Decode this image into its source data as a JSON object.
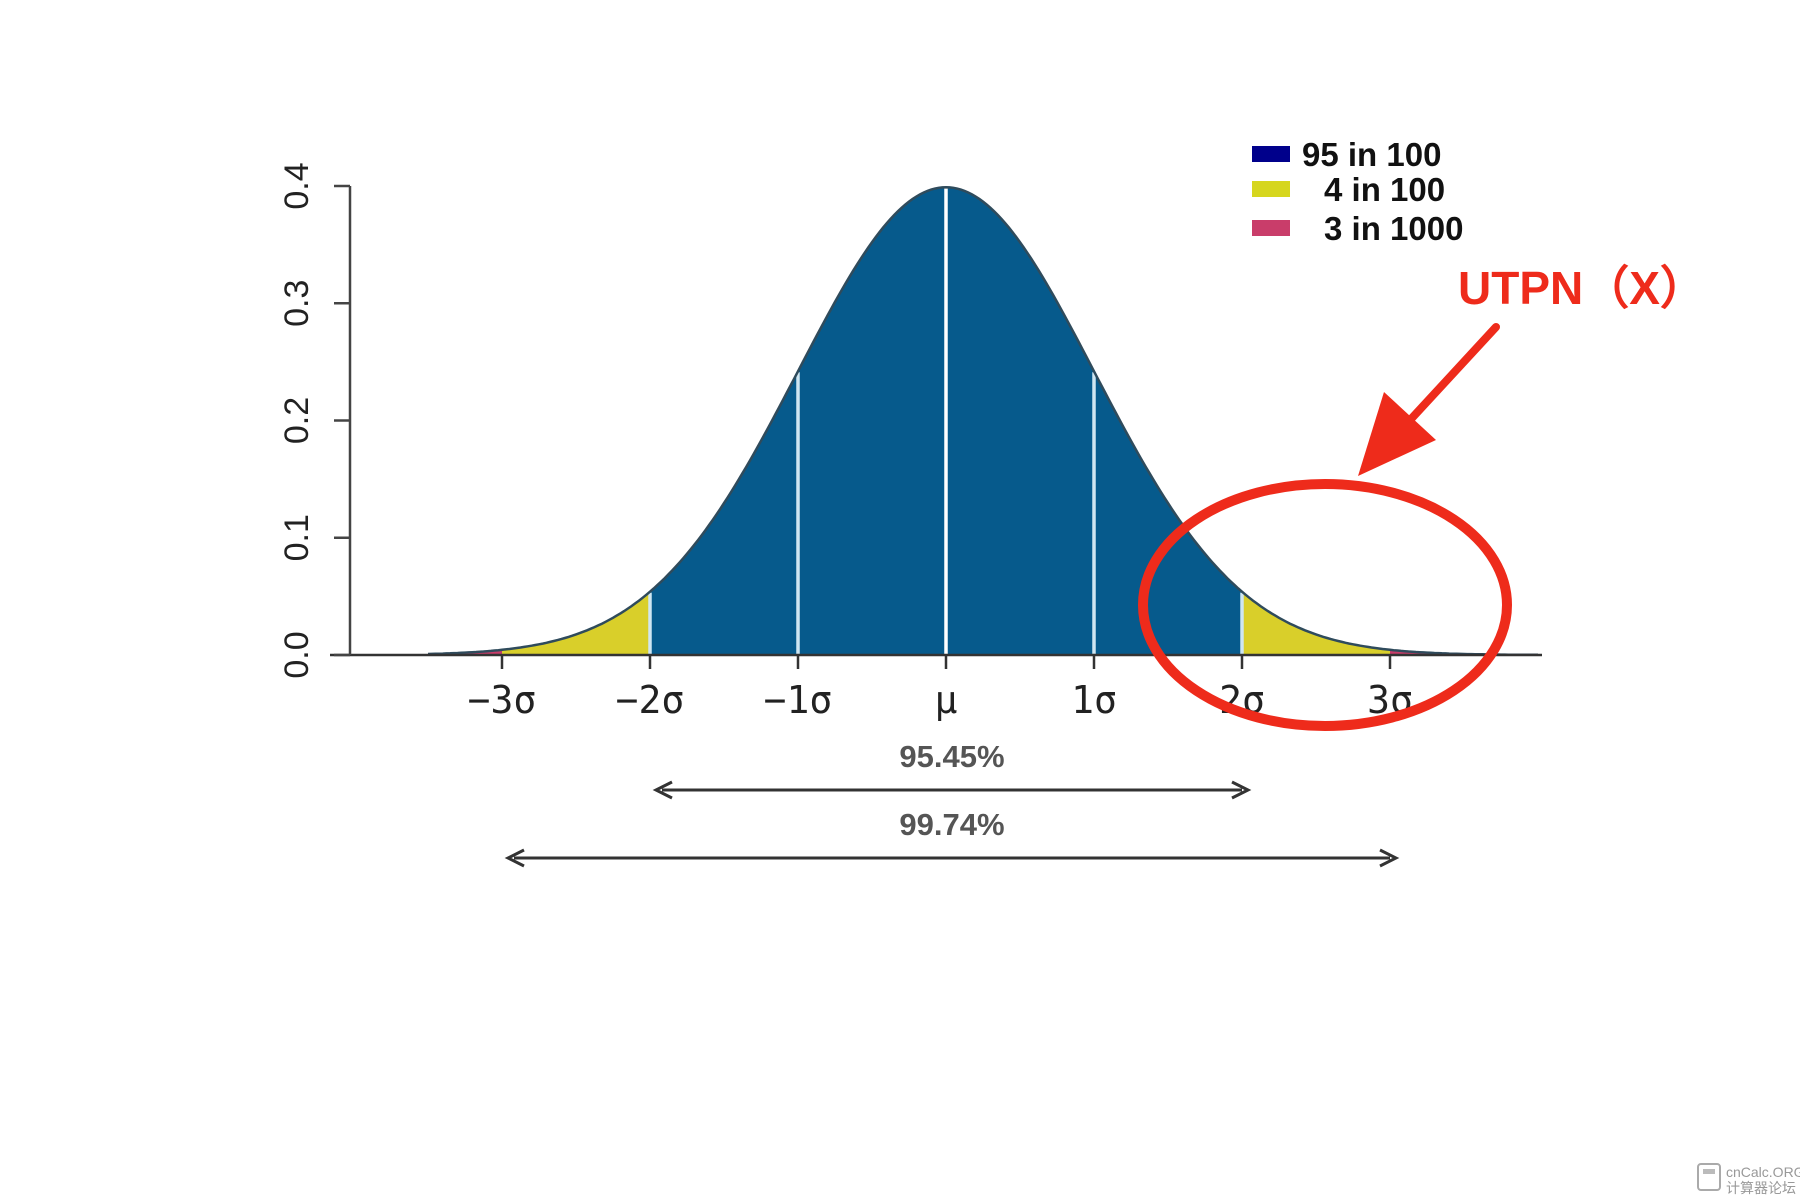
{
  "chart_data": {
    "type": "area",
    "distribution": "normal",
    "mean": 0,
    "sd": 1,
    "xlim": [
      -3.5,
      4
    ],
    "ylim": [
      0,
      0.4
    ],
    "ylabel": "",
    "xlabel": "",
    "y_ticks": [
      "0.0",
      "0.1",
      "0.2",
      "0.3",
      "0.4"
    ],
    "y_tick_values": [
      0,
      0.1,
      0.2,
      0.3,
      0.4
    ],
    "x_ticks": [
      {
        "value": -3,
        "label": "−3σ"
      },
      {
        "value": -2,
        "label": "−2σ"
      },
      {
        "value": -1,
        "label": "−1σ"
      },
      {
        "value": 0,
        "label": "μ"
      },
      {
        "value": 1,
        "label": "1σ"
      },
      {
        "value": 2,
        "label": "2σ"
      },
      {
        "value": 3,
        "label": "3σ"
      }
    ],
    "regions": [
      {
        "from": -2,
        "to": 2,
        "color": "#065a8c",
        "legend_index": 0
      },
      {
        "from": -3,
        "to": -2,
        "color": "#d9cf2a",
        "legend_index": 1
      },
      {
        "from": 2,
        "to": 3,
        "color": "#d9cf2a",
        "legend_index": 1
      },
      {
        "from": -3.5,
        "to": -3,
        "color": "#c93d6a",
        "legend_index": 2
      },
      {
        "from": 3,
        "to": 4,
        "color": "#c93d6a",
        "legend_index": 2
      }
    ],
    "legend": {
      "placement": "top-right",
      "entries": [
        {
          "label": "95 in 100",
          "color": "#00008b"
        },
        {
          "label": "4 in 100",
          "color": "#d6d61e"
        },
        {
          "label": "3 in 1000",
          "color": "#c93d6a"
        }
      ]
    },
    "ranges": [
      {
        "from": -2,
        "to": 2,
        "label": "95.45%"
      },
      {
        "from": -3,
        "to": 3,
        "label": "99.74%"
      }
    ],
    "annotation": {
      "label": "UTPN（X）",
      "color": "#ee2b1b",
      "target": "upper tail beyond 2σ"
    },
    "grid": false
  },
  "watermark": {
    "line1": "cnCalc.ORG",
    "line2": "计算器论坛"
  }
}
